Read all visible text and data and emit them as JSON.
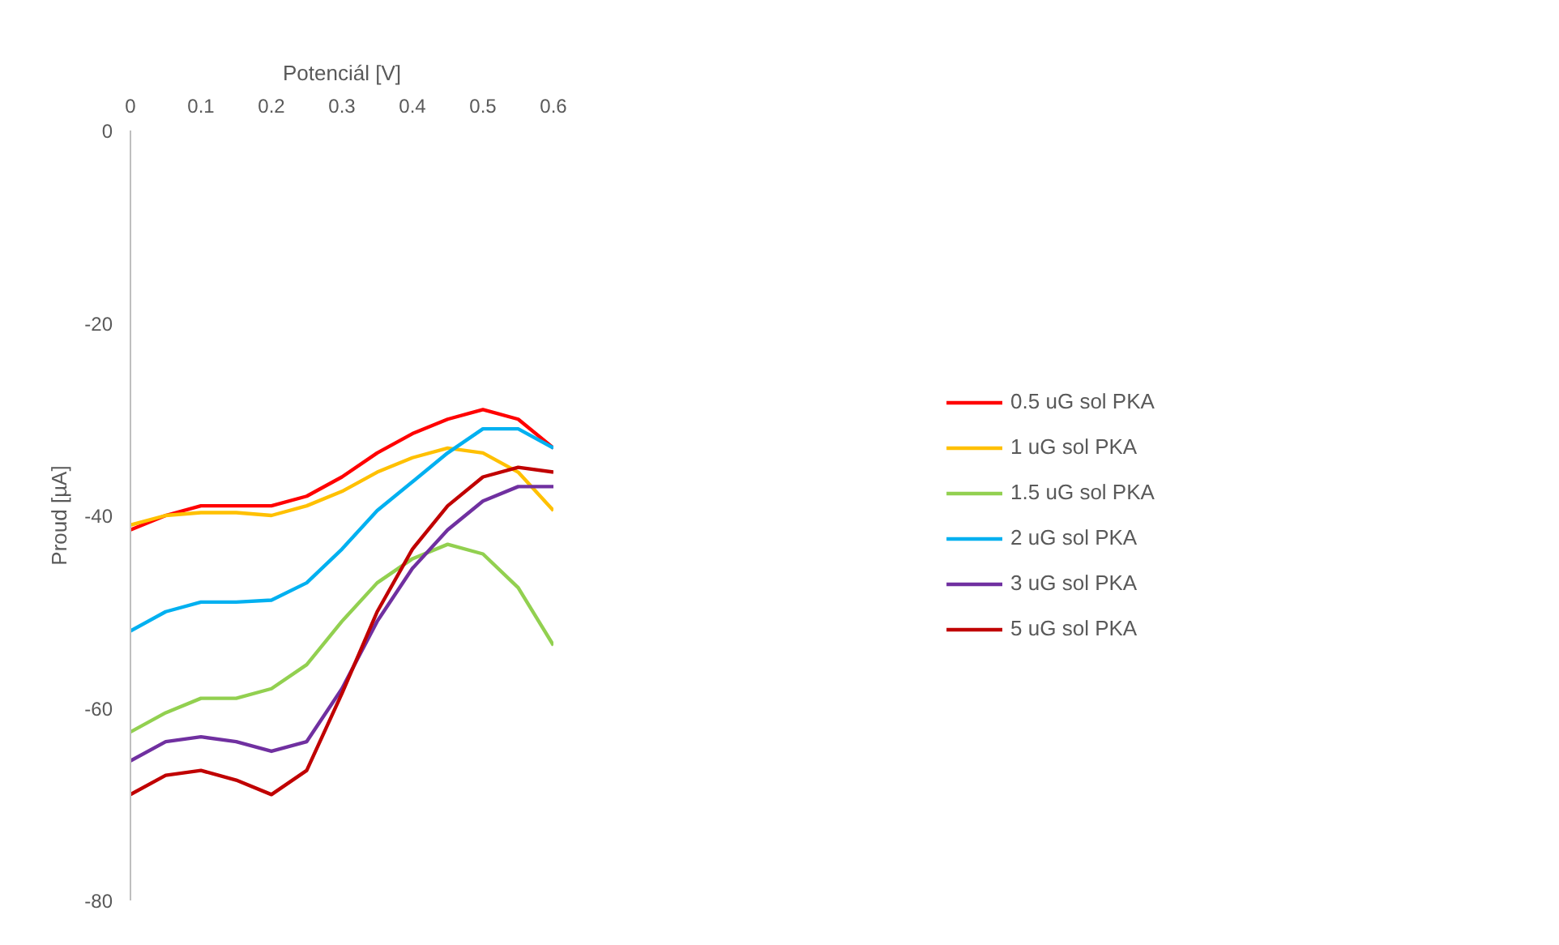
{
  "chart_data": {
    "type": "line",
    "xlabel": "Potenciál [V]",
    "ylabel": "Proud [µA]",
    "x": [
      0,
      0.05,
      0.1,
      0.15,
      0.2,
      0.25,
      0.3,
      0.35,
      0.4,
      0.45,
      0.5,
      0.55,
      0.6
    ],
    "xlim": [
      0,
      0.6
    ],
    "xticks": [
      0,
      0.1,
      0.2,
      0.3,
      0.4,
      0.5,
      0.6
    ],
    "ylim": [
      -80,
      0
    ],
    "yticks": [
      0,
      -20,
      -40,
      -60,
      -80
    ],
    "grid": false,
    "legend": "right",
    "marker": "none",
    "line_style": "solid",
    "series": [
      {
        "name": "0.5 uG sol PKA",
        "color": "#ff0000",
        "values": [
          -41.5,
          -40,
          -39,
          -39,
          -39,
          -38,
          -36,
          -33.5,
          -31.5,
          -30,
          -29,
          -30,
          -33
        ]
      },
      {
        "name": "1 uG sol PKA",
        "color": "#ffc000",
        "values": [
          -41,
          -40,
          -39.7,
          -39.7,
          -40,
          -39,
          -37.5,
          -35.5,
          -34,
          -33,
          -33.5,
          -35.5,
          -39.5
        ]
      },
      {
        "name": "1.5 uG sol PKA",
        "color": "#92d050",
        "values": [
          -62.5,
          -60.5,
          -59,
          -59,
          -58,
          -55.5,
          -51,
          -47,
          -44.5,
          -43,
          -44,
          -47.5,
          -53.5
        ]
      },
      {
        "name": "2 uG sol PKA",
        "color": "#00b0f0",
        "values": [
          -52,
          -50,
          -49,
          -49,
          -48.8,
          -47,
          -43.5,
          -39.5,
          -36.5,
          -33.5,
          -31,
          -31,
          -33
        ]
      },
      {
        "name": "3 uG sol PKA",
        "color": "#7030a0",
        "values": [
          -65.5,
          -63.5,
          -63,
          -63.5,
          -64.5,
          -63.5,
          -58,
          -51,
          -45.5,
          -41.5,
          -38.5,
          -37,
          -37
        ]
      },
      {
        "name": "5 uG sol PKA",
        "color": "#c00000",
        "values": [
          -69,
          -67,
          -66.5,
          -67.5,
          -69,
          -66.5,
          -58.5,
          -50,
          -43.5,
          -39,
          -36,
          -35,
          -35.5
        ]
      }
    ]
  }
}
